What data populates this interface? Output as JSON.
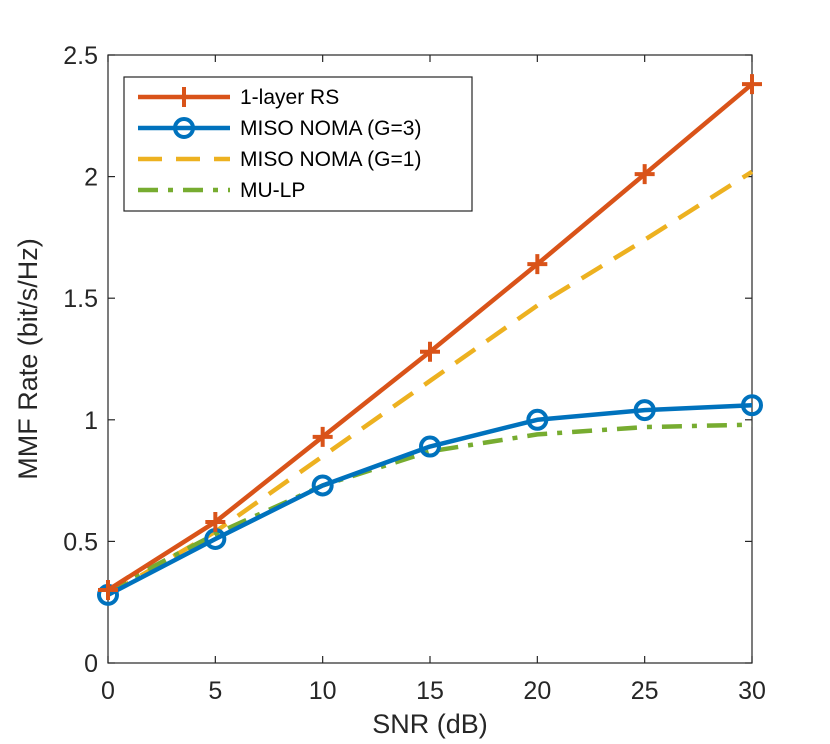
{
  "chart_data": {
    "type": "line",
    "title": "",
    "xlabel": "SNR (dB)",
    "ylabel": "MMF Rate (bit/s/Hz)",
    "xlim": [
      0,
      30
    ],
    "ylim": [
      0,
      2.5
    ],
    "xticks": [
      0,
      5,
      10,
      15,
      20,
      25,
      30
    ],
    "xtick_labels": [
      "0",
      "5",
      "10",
      "15",
      "20",
      "25",
      "30"
    ],
    "yticks": [
      0,
      0.5,
      1,
      1.5,
      2,
      2.5
    ],
    "ytick_labels": [
      "0",
      "0.5",
      "1",
      "1.5",
      "2",
      "2.5"
    ],
    "grid": false,
    "legend_position": "top-left",
    "x": [
      0,
      5,
      10,
      15,
      20,
      25,
      30
    ],
    "series": [
      {
        "name": "1-layer RS",
        "values": [
          0.3,
          0.58,
          0.93,
          1.28,
          1.64,
          2.01,
          2.38
        ],
        "color": "#D95319",
        "style": "solid",
        "marker": "plus"
      },
      {
        "name": "MISO NOMA (G=3)",
        "values": [
          0.28,
          0.51,
          0.73,
          0.89,
          1.0,
          1.04,
          1.06
        ],
        "color": "#0072BD",
        "style": "solid",
        "marker": "circle"
      },
      {
        "name": "MISO NOMA (G=1)",
        "values": [
          0.28,
          0.54,
          0.85,
          1.16,
          1.47,
          1.74,
          2.02
        ],
        "color": "#EDB120",
        "style": "dashed",
        "marker": "none"
      },
      {
        "name": "MU-LP",
        "values": [
          0.3,
          0.53,
          0.73,
          0.87,
          0.94,
          0.97,
          0.98
        ],
        "color": "#77AC30",
        "style": "dashdot",
        "marker": "none"
      }
    ]
  }
}
